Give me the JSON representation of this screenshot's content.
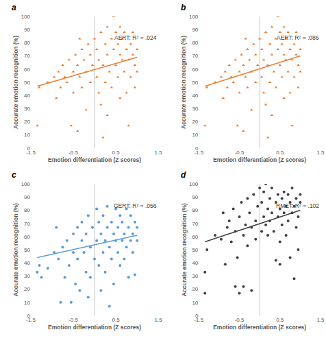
{
  "chart_data": [
    {
      "type": "scatter",
      "label": "a",
      "annotation": "AERT: R² = .024",
      "xlabel": "Emotion differentiation (Z scores)",
      "ylabel": "Accurate emotion recognition (%)",
      "xlim": [
        -1.5,
        1.5
      ],
      "xticks": [
        -1.5,
        -0.5,
        0.5,
        1.5
      ],
      "ylim": [
        0,
        100
      ],
      "yticks": [
        0,
        10,
        20,
        30,
        40,
        50,
        60,
        70,
        80,
        90,
        100
      ],
      "color": "#ED7D31",
      "marker": "triangle",
      "x": [
        -1.35,
        -1.3,
        -1.1,
        -0.95,
        -0.9,
        -0.85,
        -0.8,
        -0.75,
        -0.7,
        -0.65,
        -0.6,
        -0.55,
        -0.5,
        -0.5,
        -0.45,
        -0.4,
        -0.4,
        -0.35,
        -0.3,
        -0.3,
        -0.25,
        -0.2,
        -0.2,
        -0.15,
        -0.1,
        -0.1,
        -0.05,
        0,
        0.05,
        0.05,
        0.1,
        0.1,
        0.15,
        0.2,
        0.2,
        0.25,
        0.25,
        0.3,
        0.3,
        0.35,
        0.4,
        0.4,
        0.45,
        0.45,
        0.5,
        0.5,
        0.55,
        0.55,
        0.6,
        0.6,
        0.65,
        0.65,
        0.7,
        0.7,
        0.75,
        0.75,
        0.8,
        0.8,
        0.85,
        0.85,
        0.9,
        0.9,
        0.95,
        0.95,
        1.0,
        1.0,
        0.3,
        -0.35,
        0.6,
        0.15
      ],
      "y": [
        17,
        46,
        50,
        54,
        38,
        58,
        46,
        63,
        54,
        50,
        67,
        17,
        58,
        42,
        71,
        13,
        63,
        54,
        75,
        46,
        67,
        29,
        58,
        79,
        50,
        71,
        63,
        83,
        54,
        75,
        42,
        67,
        88,
        8,
        63,
        79,
        50,
        71,
        92,
        58,
        83,
        46,
        75,
        100,
        63,
        88,
        54,
        79,
        71,
        38,
        83,
        67,
        58,
        88,
        75,
        42,
        17,
        67,
        79,
        54,
        71,
        88,
        63,
        46,
        75,
        58,
        25,
        83,
        92,
        33
      ],
      "trendline": {
        "x": [
          -1.35,
          1.0
        ],
        "y": [
          47,
          69
        ]
      }
    },
    {
      "type": "scatter",
      "label": "b",
      "annotation": "AERT: R² = .086",
      "xlabel": "Emotion differentiation (Z scores)",
      "ylabel": "Accurate emotion recognition (%)",
      "xlim": [
        -1.5,
        1.5
      ],
      "xticks": [
        -1.5,
        -0.5,
        0.5,
        1.5
      ],
      "ylim": [
        0,
        100
      ],
      "yticks": [
        0,
        10,
        20,
        30,
        40,
        50,
        60,
        70,
        80,
        90,
        100
      ],
      "color": "#ED7D31",
      "marker": "triangle",
      "x": [
        -1.35,
        -1.3,
        -1.1,
        -0.95,
        -0.9,
        -0.85,
        -0.8,
        -0.75,
        -0.7,
        -0.65,
        -0.6,
        -0.55,
        -0.5,
        -0.5,
        -0.45,
        -0.4,
        -0.4,
        -0.35,
        -0.3,
        -0.3,
        -0.25,
        -0.2,
        -0.2,
        -0.15,
        -0.1,
        -0.1,
        -0.05,
        0,
        0.05,
        0.05,
        0.1,
        0.1,
        0.15,
        0.2,
        0.2,
        0.25,
        0.25,
        0.3,
        0.3,
        0.35,
        0.4,
        0.4,
        0.45,
        0.45,
        0.5,
        0.5,
        0.55,
        0.55,
        0.6,
        0.6,
        0.65,
        0.65,
        0.7,
        0.7,
        0.75,
        0.75,
        0.8,
        0.8,
        0.85,
        0.85,
        0.9,
        0.9,
        0.95,
        0.95,
        1.0,
        1.0,
        0.3,
        -0.35,
        0.6,
        0.15
      ],
      "y": [
        17,
        46,
        50,
        54,
        38,
        58,
        46,
        63,
        54,
        50,
        67,
        17,
        58,
        42,
        71,
        13,
        63,
        54,
        75,
        46,
        67,
        29,
        58,
        79,
        50,
        71,
        63,
        83,
        54,
        75,
        42,
        67,
        88,
        8,
        63,
        79,
        50,
        71,
        92,
        58,
        83,
        46,
        75,
        100,
        63,
        88,
        54,
        79,
        71,
        38,
        83,
        67,
        58,
        88,
        75,
        42,
        17,
        67,
        79,
        54,
        71,
        88,
        63,
        46,
        75,
        58,
        25,
        83,
        92,
        33
      ],
      "trendline": {
        "x": [
          -1.35,
          1.0
        ],
        "y": [
          47,
          70
        ]
      }
    },
    {
      "type": "scatter",
      "label": "c",
      "annotation": "GERT: R² = .056",
      "xlabel": "Emotion differentiation (Z scores)",
      "ylabel": "Accurate emotion recognition (%)",
      "xlim": [
        -1.5,
        1.5
      ],
      "xticks": [
        -1.5,
        -0.5,
        0.5,
        1.5
      ],
      "ylim": [
        0,
        100
      ],
      "yticks": [
        0,
        10,
        20,
        30,
        40,
        50,
        60,
        70,
        80,
        90,
        100
      ],
      "color": "#5B9BD5",
      "marker": "circle",
      "x": [
        -1.35,
        -1.3,
        -1.25,
        -1.1,
        -0.95,
        -0.9,
        -0.85,
        -0.8,
        -0.75,
        -0.7,
        -0.65,
        -0.6,
        -0.55,
        -0.5,
        -0.5,
        -0.45,
        -0.4,
        -0.4,
        -0.35,
        -0.3,
        -0.3,
        -0.25,
        -0.2,
        -0.2,
        -0.15,
        -0.1,
        -0.1,
        -0.05,
        0,
        0.05,
        0.05,
        0.1,
        0.1,
        0.15,
        0.15,
        0.2,
        0.2,
        0.25,
        0.25,
        0.3,
        0.3,
        0.35,
        0.4,
        0.4,
        0.45,
        0.45,
        0.5,
        0.5,
        0.55,
        0.55,
        0.6,
        0.6,
        0.65,
        0.65,
        0.7,
        0.7,
        0.75,
        0.75,
        0.8,
        0.8,
        0.85,
        0.85,
        0.9,
        0.9,
        0.95,
        0.95,
        1.0,
        1.0,
        0.35,
        -0.15
      ],
      "y": [
        33,
        38,
        29,
        36,
        48,
        67,
        43,
        10,
        52,
        29,
        57,
        38,
        10,
        62,
        48,
        24,
        67,
        43,
        19,
        57,
        71,
        48,
        33,
        62,
        76,
        52,
        29,
        67,
        43,
        57,
        81,
        38,
        71,
        62,
        19,
        48,
        76,
        57,
        33,
        67,
        83,
        52,
        43,
        71,
        62,
        24,
        57,
        81,
        48,
        67,
        76,
        38,
        57,
        71,
        43,
        62,
        81,
        52,
        67,
        29,
        57,
        76,
        62,
        48,
        71,
        31,
        57,
        67,
        7,
        14
      ],
      "trendline": {
        "x": [
          -1.35,
          1.0
        ],
        "y": [
          44,
          61
        ]
      }
    },
    {
      "type": "scatter",
      "label": "d",
      "annotation": "RMET: R² = .102",
      "xlabel": "Emotion differentiation (Z scores)",
      "ylabel": "Accurate emotion recognition (%)",
      "xlim": [
        -1.5,
        1.5
      ],
      "xticks": [
        -1.5,
        -0.5,
        0.5,
        1.5
      ],
      "ylim": [
        0,
        100
      ],
      "yticks": [
        0,
        10,
        20,
        30,
        40,
        50,
        60,
        70,
        80,
        90,
        100
      ],
      "color": "#404040",
      "marker": "circle",
      "x": [
        -1.35,
        -1.35,
        -1.3,
        -1.1,
        -0.95,
        -0.9,
        -0.85,
        -0.8,
        -0.75,
        -0.7,
        -0.65,
        -0.6,
        -0.55,
        -0.5,
        -0.5,
        -0.45,
        -0.4,
        -0.4,
        -0.35,
        -0.3,
        -0.3,
        -0.25,
        -0.2,
        -0.2,
        -0.15,
        -0.1,
        -0.1,
        -0.05,
        0,
        0.05,
        0.05,
        0.1,
        0.1,
        0.15,
        0.15,
        0.2,
        0.2,
        0.25,
        0.25,
        0.3,
        0.3,
        0.35,
        0.4,
        0.4,
        0.45,
        0.45,
        0.5,
        0.5,
        0.55,
        0.55,
        0.6,
        0.6,
        0.65,
        0.65,
        0.7,
        0.7,
        0.75,
        0.75,
        0.8,
        0.8,
        0.85,
        0.85,
        0.9,
        0.9,
        0.95,
        0.95,
        1.0,
        1.0,
        0.5,
        -0.6
      ],
      "y": [
        33,
        17,
        50,
        61,
        58,
        78,
        39,
        67,
        72,
        56,
        81,
        64,
        44,
        17,
        75,
        86,
        61,
        22,
        69,
        89,
        53,
        78,
        19,
        67,
        92,
        72,
        58,
        83,
        97,
        64,
        86,
        75,
        94,
        69,
        100,
        81,
        61,
        89,
        72,
        78,
        97,
        64,
        86,
        42,
        92,
        75,
        81,
        56,
        89,
        69,
        94,
        78,
        83,
        61,
        92,
        72,
        86,
        44,
        78,
        97,
        83,
        28,
        89,
        67,
        75,
        50,
        86,
        92,
        39,
        22
      ],
      "trendline": {
        "x": [
          -1.35,
          1.0
        ],
        "y": [
          56,
          80
        ]
      }
    }
  ]
}
